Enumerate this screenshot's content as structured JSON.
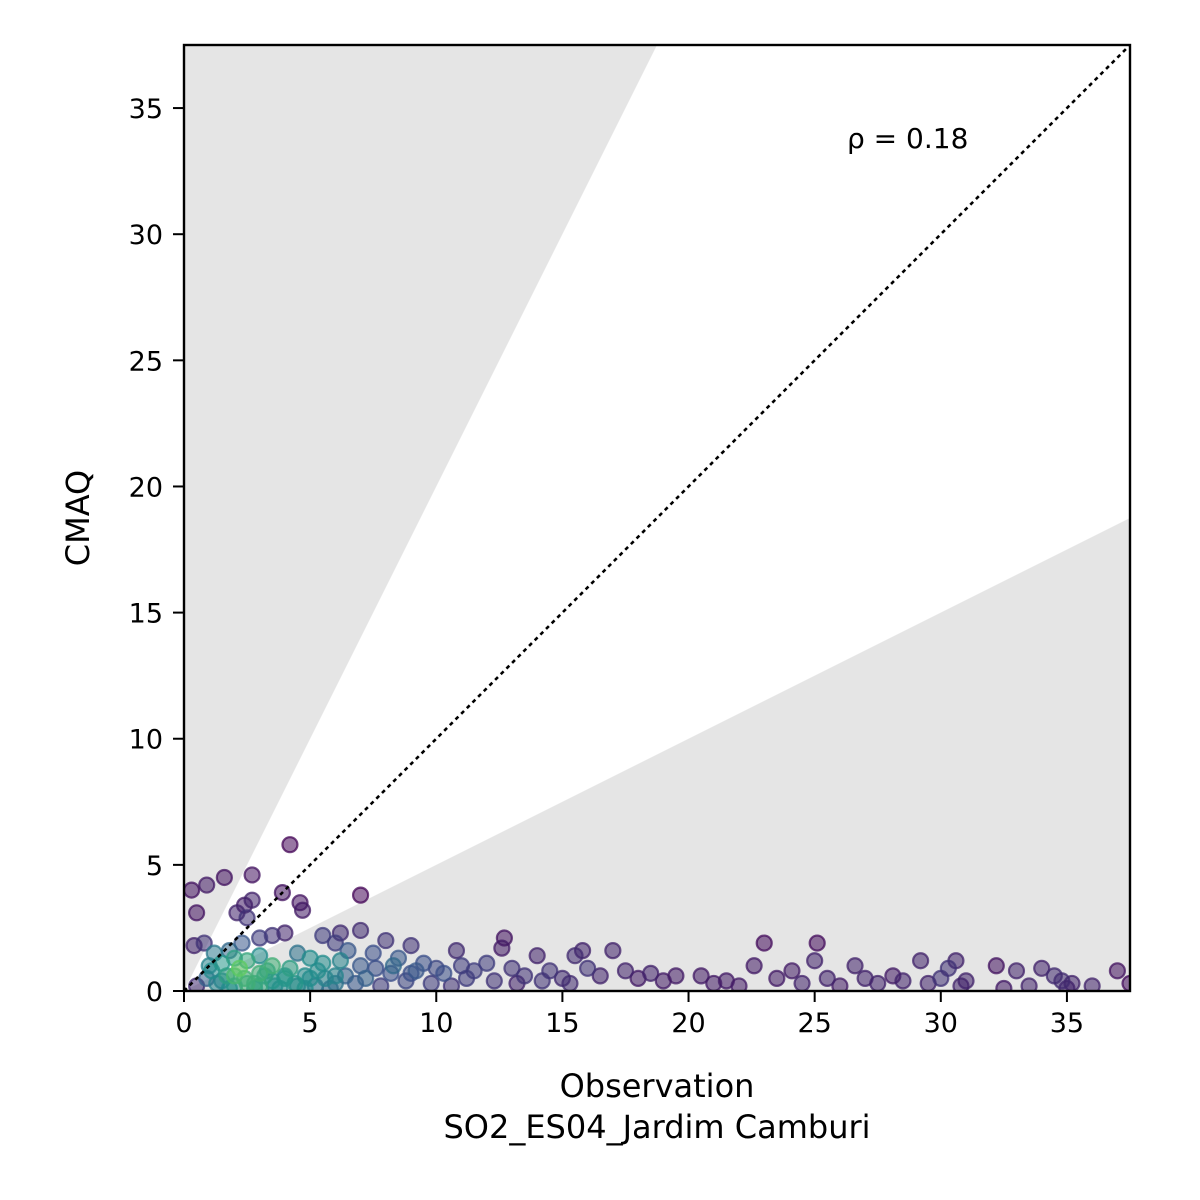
{
  "chart_data": {
    "type": "scatter",
    "xlabel": "Observation",
    "xlabel_sub": "SO2_ES04_Jardim Camburi",
    "ylabel": "CMAQ",
    "xlim": [
      0,
      37.5
    ],
    "ylim": [
      0,
      37.5
    ],
    "xticks": [
      0,
      5,
      10,
      15,
      20,
      25,
      30,
      35
    ],
    "yticks": [
      0,
      5,
      10,
      15,
      20,
      25,
      30,
      35
    ],
    "annotation": "ρ = 0.18",
    "grid": false,
    "reference_line": "1:1 dotted",
    "shaded_band_slopes": [
      0.5,
      2
    ],
    "colormap": "viridis (point density)",
    "colors": {
      "shade": "#e5e5e5",
      "low_density": "#440154",
      "high_density": "#fde725"
    },
    "points": [
      [
        0.3,
        4.0
      ],
      [
        0.5,
        3.1
      ],
      [
        0.9,
        4.2
      ],
      [
        1.6,
        4.5
      ],
      [
        2.7,
        4.6
      ],
      [
        4.2,
        5.8
      ],
      [
        3.9,
        3.9
      ],
      [
        4.6,
        3.5
      ],
      [
        4.7,
        3.2
      ],
      [
        2.1,
        3.1
      ],
      [
        2.4,
        3.4
      ],
      [
        2.7,
        3.6
      ],
      [
        2.5,
        2.9
      ],
      [
        7.0,
        3.8
      ],
      [
        7.0,
        2.4
      ],
      [
        6.2,
        2.3
      ],
      [
        8.0,
        2.0
      ],
      [
        9.0,
        1.8
      ],
      [
        10.8,
        1.6
      ],
      [
        12.7,
        2.1
      ],
      [
        12.6,
        1.7
      ],
      [
        14.0,
        1.4
      ],
      [
        15.5,
        1.4
      ],
      [
        15.8,
        1.6
      ],
      [
        17.0,
        1.6
      ],
      [
        23.0,
        1.9
      ],
      [
        25.1,
        1.9
      ],
      [
        22.6,
        1.0
      ],
      [
        24.1,
        0.8
      ],
      [
        25.0,
        1.2
      ],
      [
        26.6,
        1.0
      ],
      [
        28.1,
        0.6
      ],
      [
        29.2,
        1.2
      ],
      [
        30.6,
        1.2
      ],
      [
        30.3,
        0.9
      ],
      [
        32.2,
        1.0
      ],
      [
        33.0,
        0.8
      ],
      [
        34.0,
        0.9
      ],
      [
        34.5,
        0.6
      ],
      [
        35.2,
        0.3
      ],
      [
        37.0,
        0.8
      ],
      [
        37.5,
        0.3
      ],
      [
        0.4,
        1.8
      ],
      [
        0.8,
        1.9
      ],
      [
        1.2,
        1.5
      ],
      [
        1.8,
        1.6
      ],
      [
        2.3,
        1.9
      ],
      [
        3.0,
        2.1
      ],
      [
        3.5,
        2.2
      ],
      [
        4.0,
        2.3
      ],
      [
        5.5,
        2.2
      ],
      [
        6.0,
        1.9
      ],
      [
        6.5,
        1.6
      ],
      [
        7.5,
        1.5
      ],
      [
        8.5,
        1.3
      ],
      [
        9.5,
        1.1
      ],
      [
        11.0,
        1.0
      ],
      [
        11.5,
        0.8
      ],
      [
        12.0,
        1.1
      ],
      [
        13.0,
        0.9
      ],
      [
        13.5,
        0.6
      ],
      [
        14.5,
        0.8
      ],
      [
        15.0,
        0.5
      ],
      [
        16.0,
        0.9
      ],
      [
        16.5,
        0.6
      ],
      [
        17.5,
        0.8
      ],
      [
        18.0,
        0.5
      ],
      [
        18.5,
        0.7
      ],
      [
        19.0,
        0.4
      ],
      [
        19.5,
        0.6
      ],
      [
        20.5,
        0.6
      ],
      [
        21.0,
        0.3
      ],
      [
        21.5,
        0.4
      ],
      [
        22.0,
        0.2
      ],
      [
        23.5,
        0.5
      ],
      [
        24.5,
        0.3
      ],
      [
        25.5,
        0.5
      ],
      [
        26.0,
        0.2
      ],
      [
        27.0,
        0.5
      ],
      [
        27.5,
        0.3
      ],
      [
        28.5,
        0.4
      ],
      [
        29.5,
        0.3
      ],
      [
        30.0,
        0.5
      ],
      [
        30.8,
        0.2
      ],
      [
        31.0,
        0.4
      ],
      [
        32.5,
        0.1
      ],
      [
        33.5,
        0.2
      ],
      [
        34.8,
        0.4
      ],
      [
        35.0,
        0.1
      ],
      [
        36.0,
        0.2
      ],
      [
        0.5,
        0.2
      ],
      [
        0.9,
        0.5
      ],
      [
        1.3,
        0.3
      ],
      [
        1.7,
        0.6
      ],
      [
        2.0,
        0.2
      ],
      [
        2.4,
        0.5
      ],
      [
        2.8,
        0.3
      ],
      [
        3.2,
        0.6
      ],
      [
        3.6,
        0.2
      ],
      [
        4.0,
        0.5
      ],
      [
        4.4,
        0.3
      ],
      [
        4.8,
        0.6
      ],
      [
        5.2,
        0.2
      ],
      [
        5.6,
        0.5
      ],
      [
        6.0,
        0.3
      ],
      [
        6.4,
        0.6
      ],
      [
        6.8,
        0.3
      ],
      [
        7.2,
        0.5
      ],
      [
        7.8,
        0.2
      ],
      [
        8.2,
        0.7
      ],
      [
        8.8,
        0.4
      ],
      [
        9.2,
        0.8
      ],
      [
        9.8,
        0.3
      ],
      [
        10.3,
        0.7
      ],
      [
        10.6,
        0.2
      ],
      [
        11.2,
        0.5
      ],
      [
        12.3,
        0.4
      ],
      [
        13.2,
        0.3
      ],
      [
        14.2,
        0.4
      ],
      [
        15.3,
        0.3
      ],
      [
        1.0,
        1.0
      ],
      [
        1.5,
        1.1
      ],
      [
        2.0,
        1.3
      ],
      [
        2.5,
        1.2
      ],
      [
        3.0,
        1.4
      ],
      [
        3.5,
        1.0
      ],
      [
        4.5,
        1.5
      ],
      [
        5.0,
        1.3
      ],
      [
        5.5,
        1.1
      ],
      [
        6.2,
        1.2
      ],
      [
        7.0,
        1.0
      ],
      [
        7.6,
        0.9
      ],
      [
        8.3,
        1.0
      ],
      [
        9.0,
        0.7
      ],
      [
        10.0,
        0.9
      ],
      [
        1.1,
        0.8
      ],
      [
        2.2,
        0.9
      ],
      [
        3.3,
        0.8
      ],
      [
        4.2,
        0.9
      ],
      [
        5.3,
        0.8
      ],
      [
        1.5,
        0.4
      ],
      [
        2.5,
        0.3
      ],
      [
        3.0,
        0.2
      ],
      [
        3.5,
        0.4
      ],
      [
        4.5,
        0.2
      ],
      [
        1.8,
        0.1
      ],
      [
        2.8,
        0.1
      ],
      [
        3.8,
        0.1
      ],
      [
        4.8,
        0.1
      ],
      [
        5.8,
        0.1
      ],
      [
        2.0,
        0.6
      ],
      [
        3.0,
        0.7
      ],
      [
        4.0,
        0.6
      ],
      [
        5.0,
        0.5
      ],
      [
        6.0,
        0.6
      ]
    ]
  }
}
